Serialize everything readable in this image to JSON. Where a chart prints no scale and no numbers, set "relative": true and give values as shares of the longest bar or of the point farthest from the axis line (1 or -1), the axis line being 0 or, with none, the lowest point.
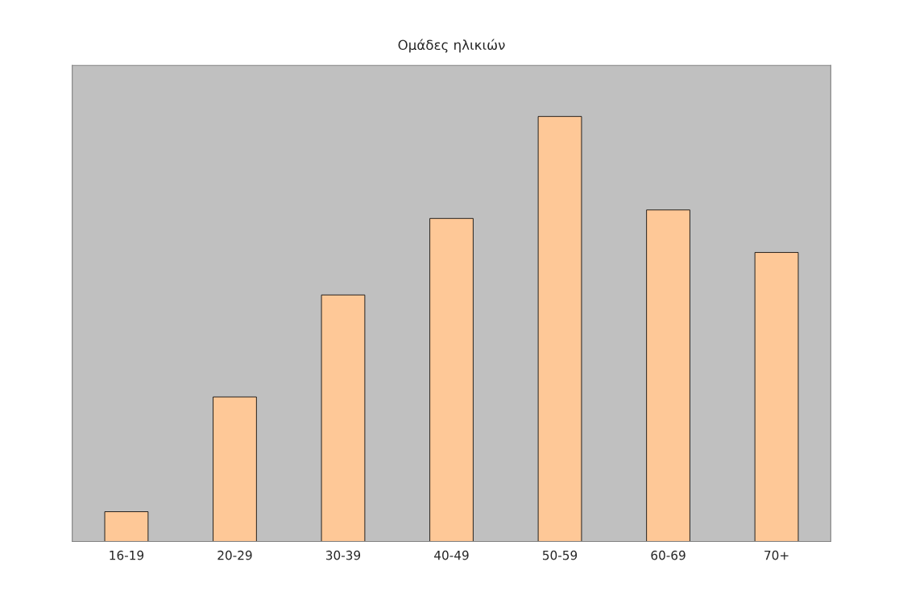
{
  "chart_data": {
    "type": "bar",
    "title": "Ομάδες ηλικιών",
    "relative": true,
    "categories": [
      "16-19",
      "20-29",
      "30-39",
      "40-49",
      "50-59",
      "60-69",
      "70+"
    ],
    "values": [
      0.07,
      0.34,
      0.58,
      0.76,
      1,
      0.78,
      0.68
    ],
    "color": "#fec897"
  }
}
